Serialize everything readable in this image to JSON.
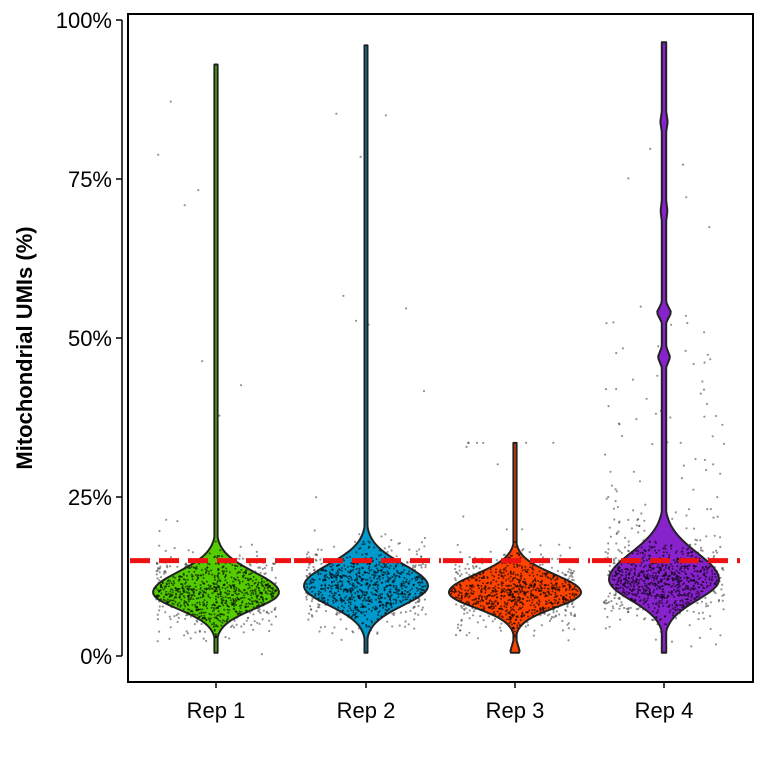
{
  "chart_data": {
    "type": "violin",
    "title": "",
    "xlabel": "",
    "ylabel": "Mitochondrial UMIs (%)",
    "ylim": [
      0,
      100
    ],
    "yticks": [
      0,
      25,
      50,
      75,
      100
    ],
    "ytick_labels": [
      "0%",
      "25%",
      "50%",
      "75%",
      "100%"
    ],
    "categories": [
      "Rep 1",
      "Rep 2",
      "Rep 3",
      "Rep 4"
    ],
    "threshold": {
      "value": 15,
      "color": "#ee1111",
      "style": "dashed"
    },
    "series": [
      {
        "color": "#55cc00",
        "median": 10,
        "min": 0.5,
        "max": 93
      },
      {
        "color": "#0099cc",
        "median": 11,
        "min": 0.5,
        "max": 96
      },
      {
        "color": "#ff4400",
        "median": 10,
        "min": 0.5,
        "max": 33.5
      },
      {
        "color": "#8822cc",
        "median": 12,
        "min": 0.5,
        "max": 96.5
      }
    ],
    "grid": false,
    "legend": "none"
  }
}
